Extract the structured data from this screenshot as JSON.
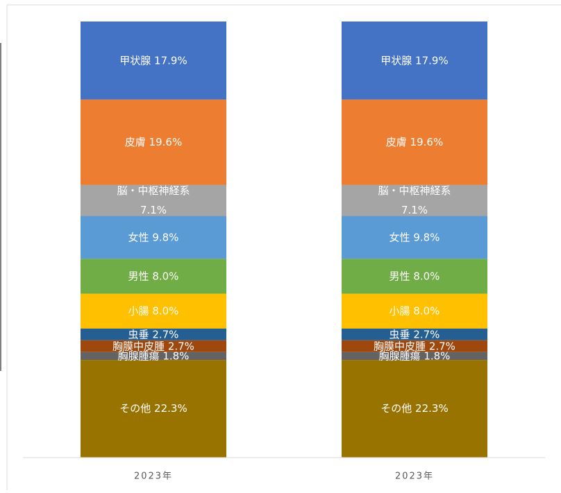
{
  "chart_data": {
    "type": "bar",
    "stacked": true,
    "percent_stacked": true,
    "categories": [
      "2023年",
      "2023年"
    ],
    "ylim": [
      0,
      100
    ],
    "grid": false,
    "legend": "none",
    "series": [
      {
        "name": "甲状腺",
        "values": [
          17.9,
          17.9
        ],
        "color": "#4472C4",
        "label": "甲状腺 17.9%"
      },
      {
        "name": "皮膚",
        "values": [
          19.6,
          19.6
        ],
        "color": "#ED7D31",
        "label": "皮膚 19.6%"
      },
      {
        "name": "脳・中枢神経系",
        "values": [
          7.1,
          7.1
        ],
        "color": "#A5A5A5",
        "label_lines": [
          "脳・中枢神経系",
          "7.1%"
        ]
      },
      {
        "name": "女性",
        "values": [
          9.8,
          9.8
        ],
        "color": "#5B9BD5",
        "label": "女性 9.8%"
      },
      {
        "name": "男性",
        "values": [
          8.0,
          8.0
        ],
        "color": "#70AD47",
        "label": "男性 8.0%"
      },
      {
        "name": "小腸",
        "values": [
          8.0,
          8.0
        ],
        "color": "#FFC000",
        "label": "小腸 8.0%"
      },
      {
        "name": "虫垂",
        "values": [
          2.7,
          2.7
        ],
        "color": "#255E91",
        "label": "虫垂 2.7%"
      },
      {
        "name": "胸膜中皮腫",
        "values": [
          2.7,
          2.7
        ],
        "color": "#9E480E",
        "label": "胸膜中皮腫 2.7%"
      },
      {
        "name": "胸腺腫瘍",
        "values": [
          1.8,
          1.8
        ],
        "color": "#636363",
        "label": "胸腺腫瘍 1.8%"
      },
      {
        "name": "その他",
        "values": [
          22.3,
          22.3
        ],
        "color": "#997300",
        "label": "その他 22.3%"
      }
    ]
  }
}
